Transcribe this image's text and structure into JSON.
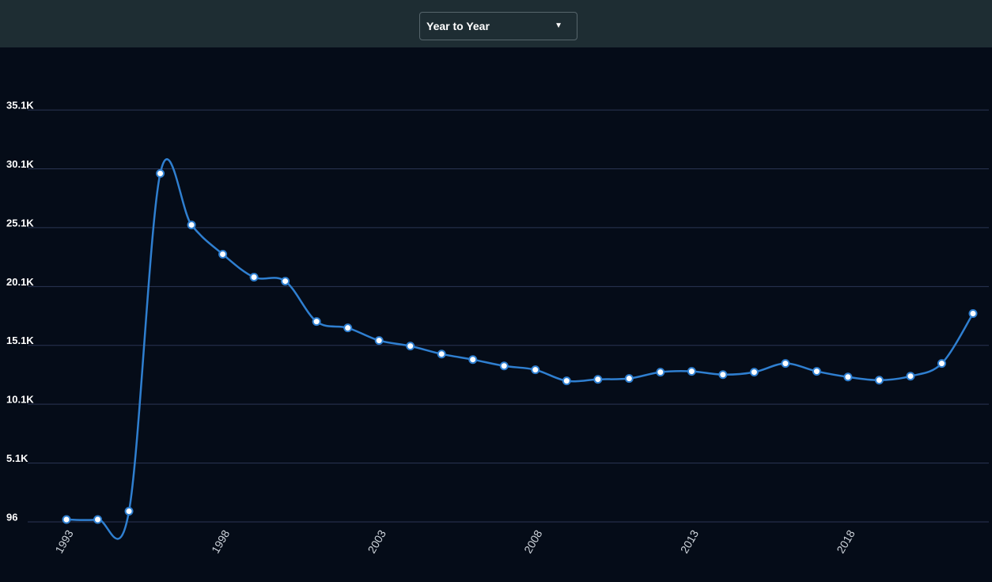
{
  "toolbar": {
    "dropdown": "Year to Year"
  },
  "chart_data": {
    "type": "line",
    "x": [
      1993,
      1994,
      1995,
      1996,
      1997,
      1998,
      1999,
      2000,
      2001,
      2002,
      2003,
      2004,
      2005,
      2006,
      2007,
      2008,
      2009,
      2010,
      2011,
      2012,
      2013,
      2014,
      2015,
      2016,
      2017,
      2018,
      2019,
      2020,
      2021,
      2022
    ],
    "values": [
      300,
      300,
      1000,
      29700,
      25330,
      22840,
      20890,
      20550,
      17120,
      16580,
      15510,
      15040,
      14360,
      13890,
      13350,
      13020,
      12080,
      12210,
      12280,
      12820,
      12890,
      12610,
      12820,
      13560,
      12890,
      12410,
      12140,
      12480,
      13560,
      17800
    ],
    "color": "#2f7fd0",
    "xlim": [
      1993,
      2022
    ],
    "xticks": [
      1993,
      1998,
      2003,
      2008,
      2013,
      2018
    ],
    "ylim": [
      96,
      39000
    ],
    "yticks": [
      96,
      {
        "value": 5096,
        "label": "5.1K"
      },
      {
        "value": 10096,
        "label": "10.1K"
      },
      {
        "value": 15096,
        "label": "15.1K"
      },
      {
        "value": 20096,
        "label": "20.1K"
      },
      {
        "value": 25096,
        "label": "25.1K"
      },
      {
        "value": 30096,
        "label": "30.1K"
      },
      {
        "value": 35096,
        "label": "35.1K"
      }
    ],
    "grid": true
  }
}
